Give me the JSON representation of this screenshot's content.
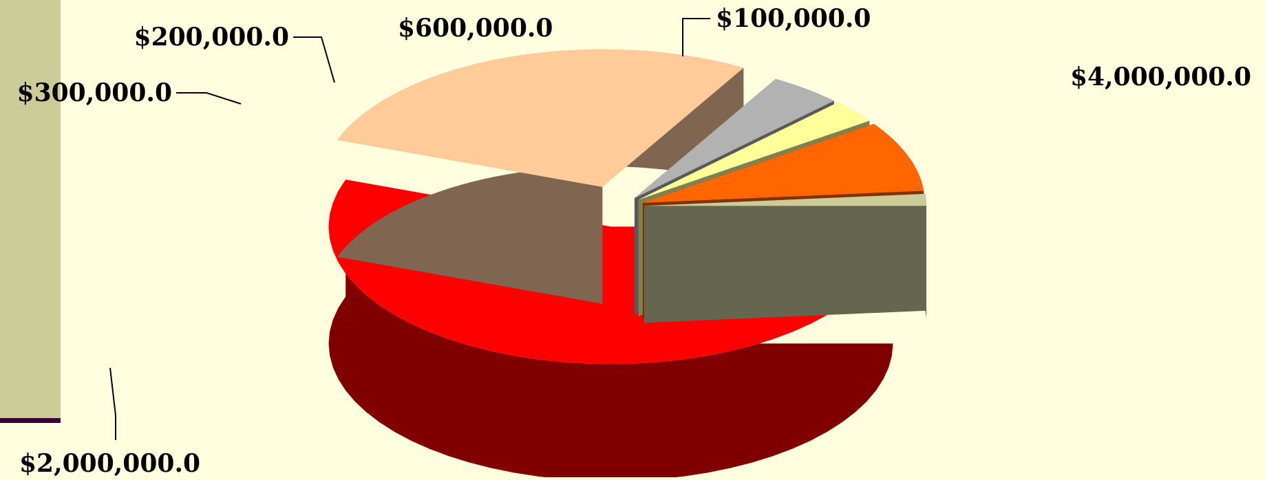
{
  "chart_data": {
    "type": "pie",
    "title": "",
    "subtitle": "",
    "style": "3d-exploded",
    "legend": "none",
    "slices": [
      {
        "label": "$4,000,000.0",
        "value": 4000000,
        "top_color": "#ff0000",
        "side_color": "#800000"
      },
      {
        "label": "$2,000,000.0",
        "value": 2000000,
        "top_color": "#ffcc99",
        "side_color": "#806650"
      },
      {
        "label": "$300,000.0",
        "value": 300000,
        "top_color": "#b2b2b2",
        "side_color": "#595959"
      },
      {
        "label": "$200,000.0",
        "value": 200000,
        "top_color": "#ffff99",
        "side_color": "#808050"
      },
      {
        "label": "$600,000.0",
        "value": 600000,
        "top_color": "#ff6600",
        "side_color": "#7f3300"
      },
      {
        "label": "$100,000.0",
        "value": 100000,
        "top_color": "#cccc99",
        "side_color": "#666650"
      }
    ]
  },
  "colors": {
    "background": "#ffffe0",
    "left_bar": "#cccc99",
    "left_bar_edge": "#330033",
    "leader_line": "#000000"
  }
}
